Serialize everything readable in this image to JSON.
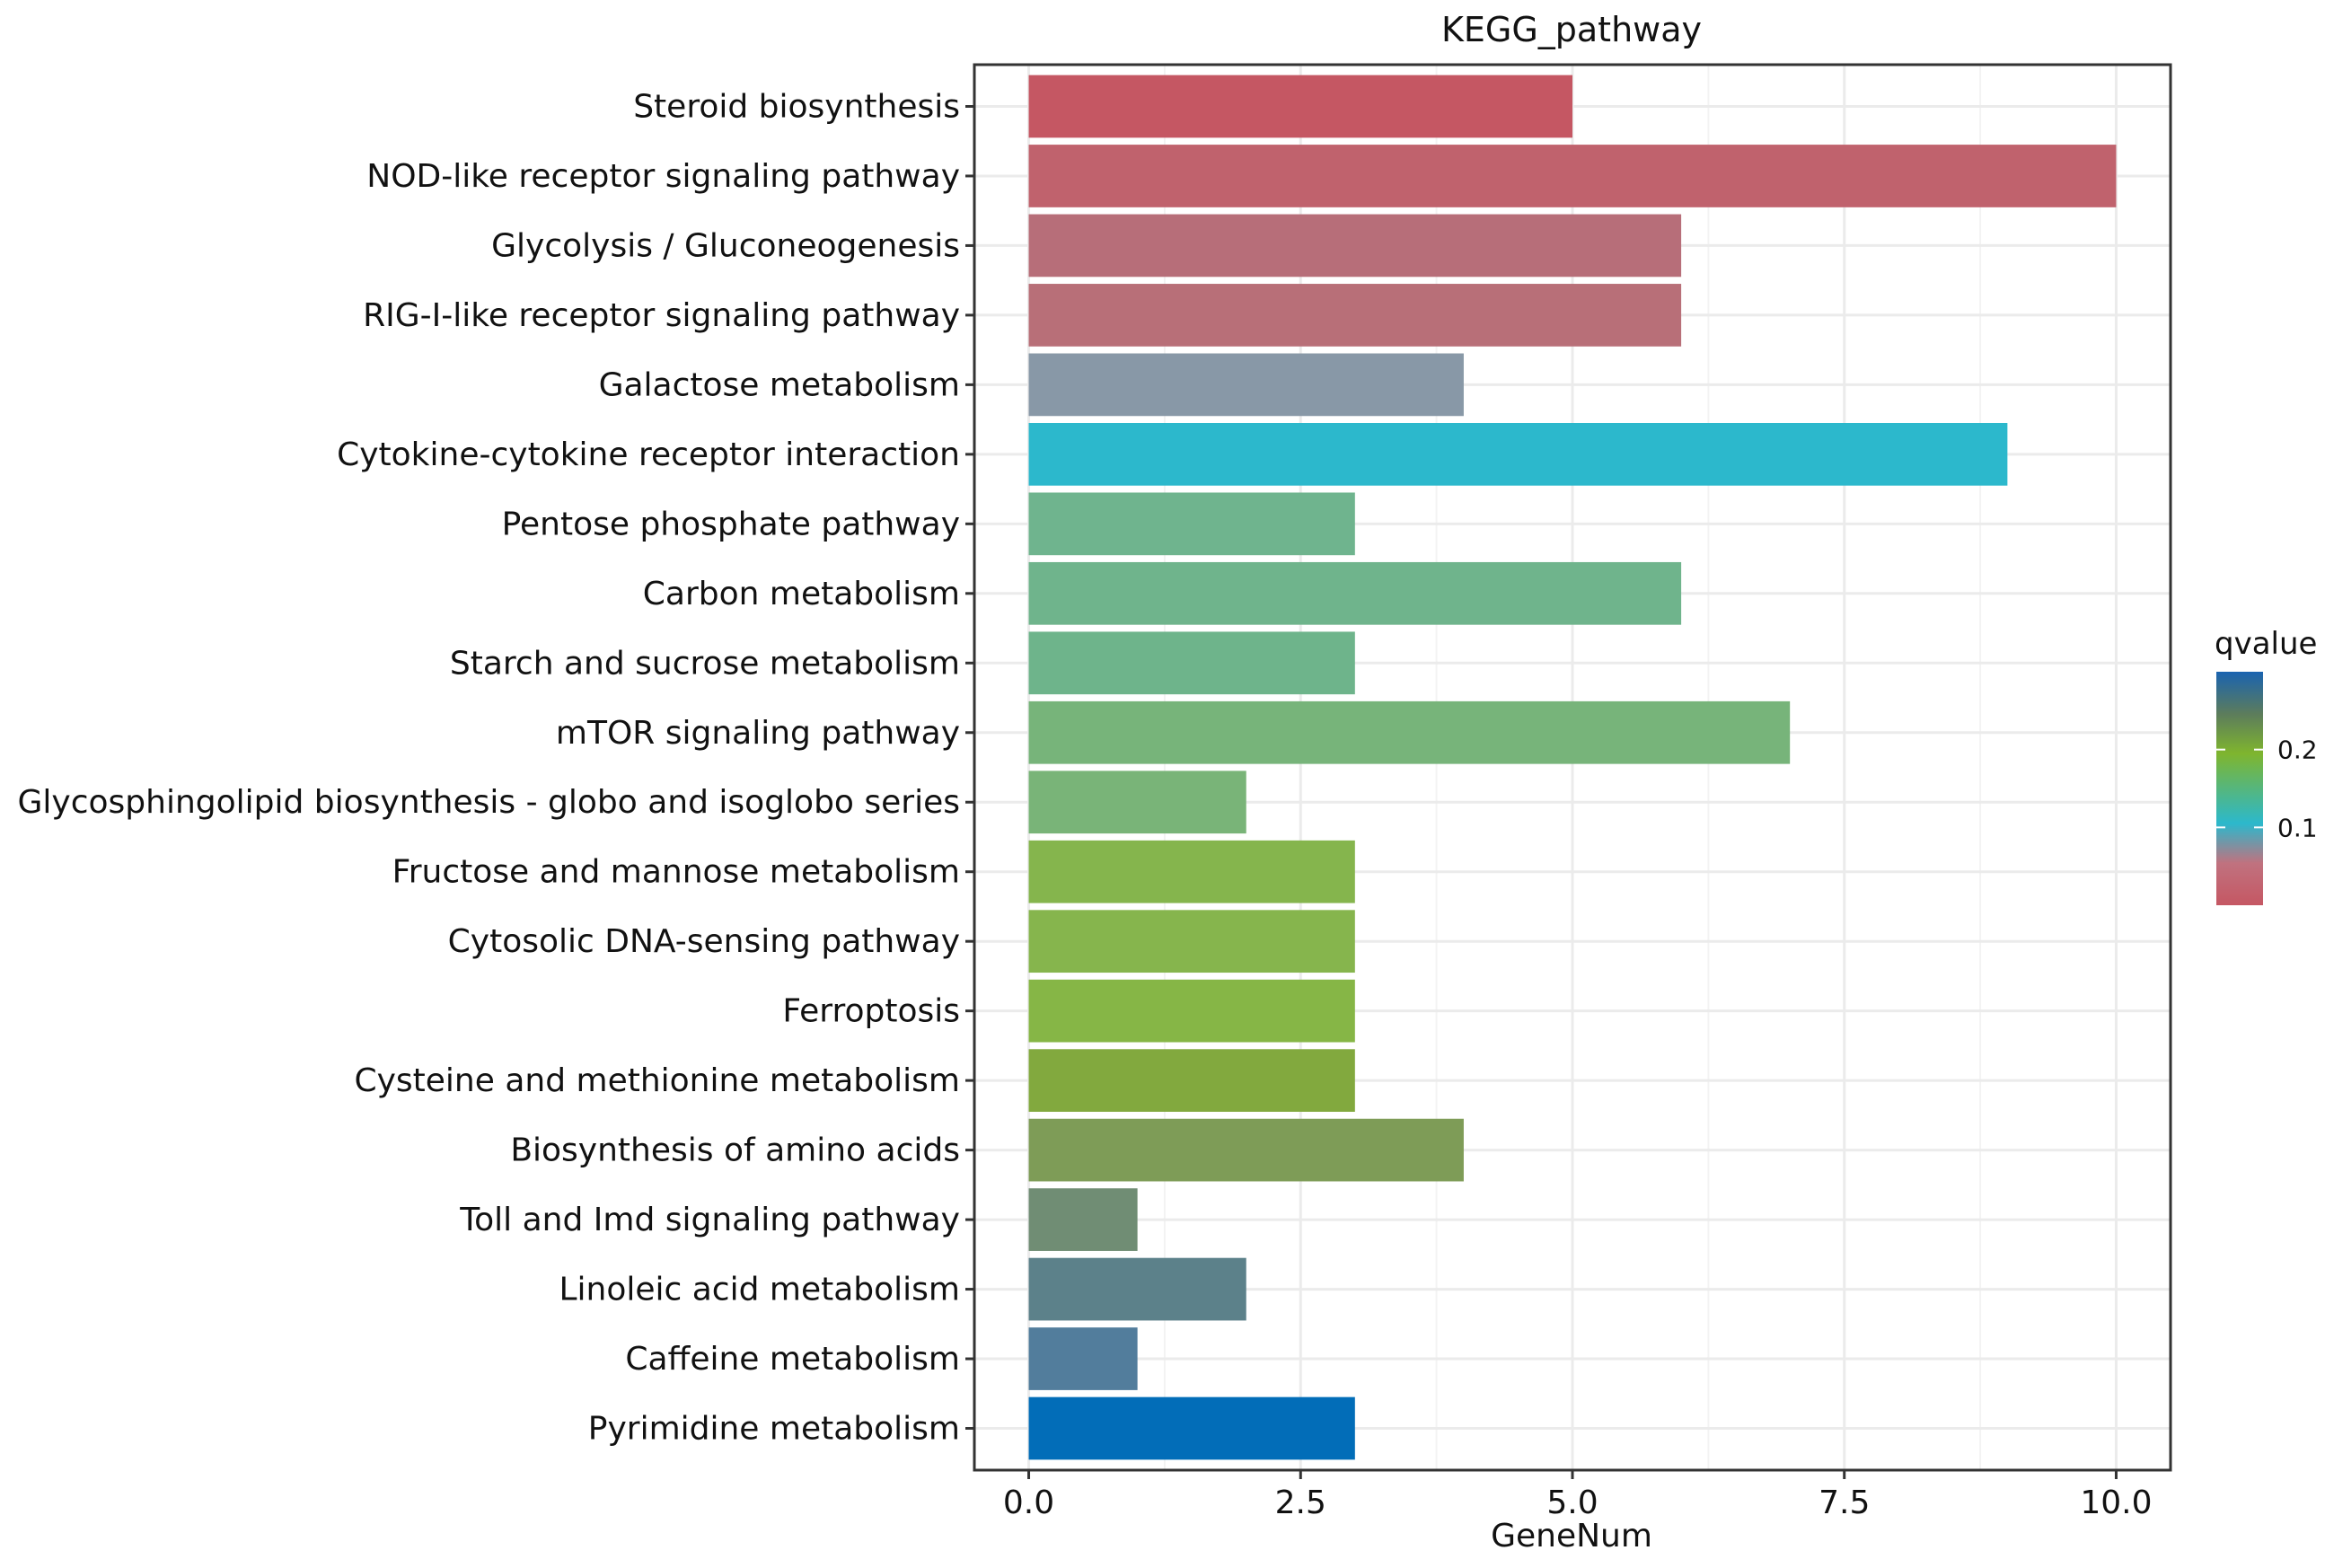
{
  "chart_data": {
    "type": "bar",
    "orientation": "horizontal",
    "title": "KEGG_pathway",
    "xlabel": "GeneNum",
    "ylabel": "",
    "xlim": [
      -0.5,
      10.5
    ],
    "x_ticks": [
      "0.0",
      "2.5",
      "5.0",
      "7.5",
      "10.0"
    ],
    "x_tick_values": [
      0,
      2.5,
      5,
      7.5,
      10
    ],
    "grid": true,
    "categories": [
      "Steroid biosynthesis",
      "NOD-like receptor signaling pathway",
      "Glycolysis / Gluconeogenesis",
      "RIG-I-like receptor signaling pathway",
      "Galactose metabolism",
      "Cytokine-cytokine receptor interaction",
      "Pentose phosphate pathway",
      "Carbon metabolism",
      "Starch and sucrose metabolism",
      "mTOR signaling pathway",
      "Glycosphingolipid biosynthesis - globo and isoglobo series",
      "Fructose and mannose metabolism",
      "Cytosolic DNA-sensing pathway",
      "Ferroptosis",
      "Cysteine and methionine metabolism",
      "Biosynthesis of amino acids",
      "Toll and Imd signaling pathway",
      "Linoleic acid metabolism",
      "Caffeine metabolism",
      "Pyrimidine metabolism"
    ],
    "values": [
      5,
      10,
      6,
      6,
      4,
      9,
      3,
      6,
      3,
      7,
      2,
      3,
      3,
      3,
      3,
      4,
      1,
      2,
      1,
      3
    ],
    "colors": [
      "#c55763",
      "#c0626d",
      "#b76e79",
      "#b86f78",
      "#8898a7",
      "#2cb8cc",
      "#6fb48e",
      "#6fb48c",
      "#6eb48b",
      "#77b47a",
      "#79b478",
      "#85b54d",
      "#86b54d",
      "#86b646",
      "#82a93e",
      "#7e9c57",
      "#708d74",
      "#5c818a",
      "#527d9c",
      "#026db8"
    ],
    "legend": {
      "title": "qvalue",
      "position": "right",
      "ticks": [
        "0.2",
        "0.1"
      ],
      "tick_values": [
        0.2,
        0.1
      ],
      "range": [
        0.0,
        0.3
      ],
      "gradient": [
        "#c55763",
        "#2cb8cc",
        "#7fb52e",
        "#1a63b0"
      ]
    }
  }
}
